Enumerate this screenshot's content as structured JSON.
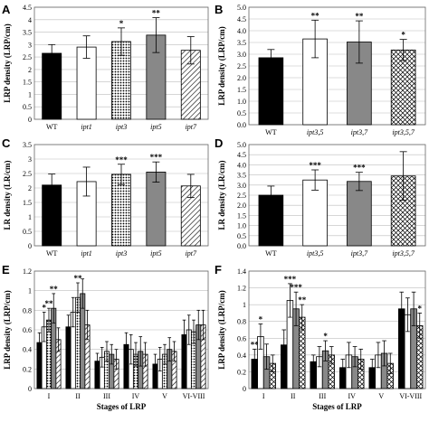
{
  "patterns": {
    "WT": "solid-black",
    "ipt1": "white",
    "ipt3": "dots",
    "ipt5": "solid-gray",
    "ipt7": "diagonal-lines",
    "ipt3,5": "white",
    "ipt3,7": "solid-gray",
    "ipt3,5,7": "crosshatch"
  },
  "colors": {
    "black": "#000000",
    "gray": "#888888",
    "white": "#ffffff",
    "grid": "#bdbdbd"
  },
  "chart_data": [
    {
      "panel": "A",
      "type": "bar",
      "ylabel": "LRP density (LRP/cm)",
      "xlabel": "",
      "ylim": [
        0,
        4.5
      ],
      "yticks": [
        "0",
        "0.5",
        "1",
        "1.5",
        "2",
        "2.5",
        "3",
        "3.5",
        "4",
        "4.5"
      ],
      "categories": [
        "WT",
        "ipt1",
        "ipt3",
        "ipt5",
        "ipt7"
      ],
      "values": [
        2.65,
        2.9,
        3.12,
        3.38,
        2.77
      ],
      "errors": [
        0.35,
        0.45,
        0.55,
        0.7,
        0.55
      ],
      "stars": [
        "",
        "",
        "*",
        "**",
        ""
      ],
      "grid": true
    },
    {
      "panel": "B",
      "type": "bar",
      "ylabel": "LRP density (LRP/cm)",
      "xlabel": "",
      "ylim": [
        0,
        5.0
      ],
      "yticks": [
        "0.0",
        "0.5",
        "1.0",
        "1.5",
        "2.0",
        "2.5",
        "3.0",
        "3.5",
        "4.0",
        "4.5",
        "5.0"
      ],
      "categories": [
        "WT",
        "ipt3,5",
        "ipt3,7",
        "ipt3,5,7"
      ],
      "values": [
        2.85,
        3.65,
        3.52,
        3.18
      ],
      "errors": [
        0.35,
        0.8,
        0.9,
        0.45
      ],
      "stars": [
        "",
        "**",
        "**",
        "*"
      ],
      "grid": true
    },
    {
      "panel": "C",
      "type": "bar",
      "ylabel": "LR density (LR/cm)",
      "xlabel": "",
      "ylim": [
        0,
        3.5
      ],
      "yticks": [
        "0",
        "0.5",
        "1",
        "1.5",
        "2",
        "2.5",
        "3",
        "3.5"
      ],
      "categories": [
        "WT",
        "ipt1",
        "ipt3",
        "ipt5",
        "ipt7"
      ],
      "values": [
        2.1,
        2.22,
        2.47,
        2.55,
        2.07
      ],
      "errors": [
        0.38,
        0.5,
        0.35,
        0.35,
        0.4
      ],
      "stars": [
        "",
        "",
        "***",
        "***",
        ""
      ],
      "grid": true
    },
    {
      "panel": "D",
      "type": "bar",
      "ylabel": "LR density (LR/cm)",
      "xlabel": "",
      "ylim": [
        0,
        5.0
      ],
      "yticks": [
        "0.0",
        "0.5",
        "1.0",
        "1.5",
        "2.0",
        "2.5",
        "3.0",
        "3.5",
        "4.0",
        "4.5",
        "5.0"
      ],
      "categories": [
        "WT",
        "ipt3,5",
        "ipt3,7",
        "ipt3,5,7"
      ],
      "values": [
        2.5,
        3.25,
        3.18,
        3.45
      ],
      "errors": [
        0.45,
        0.5,
        0.45,
        1.2
      ],
      "stars": [
        "",
        "***",
        "***",
        ""
      ],
      "grid": true
    },
    {
      "panel": "E",
      "type": "bar",
      "ylabel": "LRP density (LRP/cm)",
      "xlabel": "Stages of LRP",
      "ylim": [
        0,
        1.2
      ],
      "yticks": [
        "0",
        "0.2",
        "0.4",
        "0.6",
        "0.8",
        "1",
        "1.2"
      ],
      "categories": [
        "I",
        "II",
        "III",
        "IV",
        "V",
        "VI-VIII"
      ],
      "series_keys": [
        "WT",
        "ipt1",
        "ipt3",
        "ipt5",
        "ipt7"
      ],
      "values": [
        [
          0.47,
          0.63,
          0.7,
          0.82,
          0.5
        ],
        [
          0.63,
          0.78,
          0.93,
          0.97,
          0.65
        ],
        [
          0.28,
          0.32,
          0.38,
          0.35,
          0.3
        ],
        [
          0.45,
          0.4,
          0.35,
          0.38,
          0.35
        ],
        [
          0.25,
          0.3,
          0.35,
          0.4,
          0.38
        ],
        [
          0.55,
          0.6,
          0.58,
          0.65,
          0.65
        ]
      ],
      "errors": [
        [
          0.1,
          0.15,
          0.12,
          0.15,
          0.12
        ],
        [
          0.12,
          0.15,
          0.15,
          0.15,
          0.15
        ],
        [
          0.08,
          0.1,
          0.1,
          0.1,
          0.1
        ],
        [
          0.12,
          0.15,
          0.12,
          0.15,
          0.12
        ],
        [
          0.1,
          0.12,
          0.1,
          0.12,
          0.1
        ],
        [
          0.15,
          0.15,
          0.12,
          0.15,
          0.15
        ]
      ],
      "stars": [
        [
          "",
          "*",
          "**",
          "**",
          ""
        ],
        [
          "",
          "",
          "**",
          "",
          ""
        ],
        [
          "",
          "",
          "",
          "",
          ""
        ],
        [
          "",
          "",
          "",
          "",
          ""
        ],
        [
          "",
          "",
          "",
          "",
          ""
        ],
        [
          "",
          "",
          "",
          "",
          ""
        ]
      ],
      "grid": true
    },
    {
      "panel": "F",
      "type": "bar",
      "ylabel": "LRP density (LRP/cm)",
      "xlabel": "Stages of LRP",
      "ylim": [
        0,
        1.4
      ],
      "yticks": [
        "0",
        "0.2",
        "0.4",
        "0.6",
        "0.8",
        "1",
        "1.2",
        "1.4"
      ],
      "categories": [
        "I",
        "II",
        "III",
        "IV",
        "V",
        "VI-VIII"
      ],
      "series_keys": [
        "WT",
        "ipt3,5",
        "ipt3,7",
        "ipt3,5,7"
      ],
      "values": [
        [
          0.35,
          0.62,
          0.38,
          0.3
        ],
        [
          0.52,
          1.05,
          0.95,
          0.85
        ],
        [
          0.32,
          0.38,
          0.45,
          0.4
        ],
        [
          0.25,
          0.4,
          0.38,
          0.35
        ],
        [
          0.25,
          0.4,
          0.42,
          0.3
        ],
        [
          0.95,
          0.88,
          0.95,
          0.75
        ]
      ],
      "errors": [
        [
          0.12,
          0.15,
          0.15,
          0.1
        ],
        [
          0.18,
          0.2,
          0.2,
          0.15
        ],
        [
          0.08,
          0.12,
          0.12,
          0.1
        ],
        [
          0.1,
          0.15,
          0.12,
          0.12
        ],
        [
          0.1,
          0.15,
          0.15,
          0.12
        ],
        [
          0.2,
          0.2,
          0.2,
          0.15
        ]
      ],
      "stars": [
        [
          "**",
          "*",
          "",
          ""
        ],
        [
          "",
          "***",
          "***",
          "**"
        ],
        [
          "",
          "",
          "*",
          ""
        ],
        [
          "",
          "",
          "",
          ""
        ],
        [
          "",
          "",
          "",
          ""
        ],
        [
          "",
          "",
          "",
          "*"
        ]
      ],
      "grid": true
    }
  ]
}
